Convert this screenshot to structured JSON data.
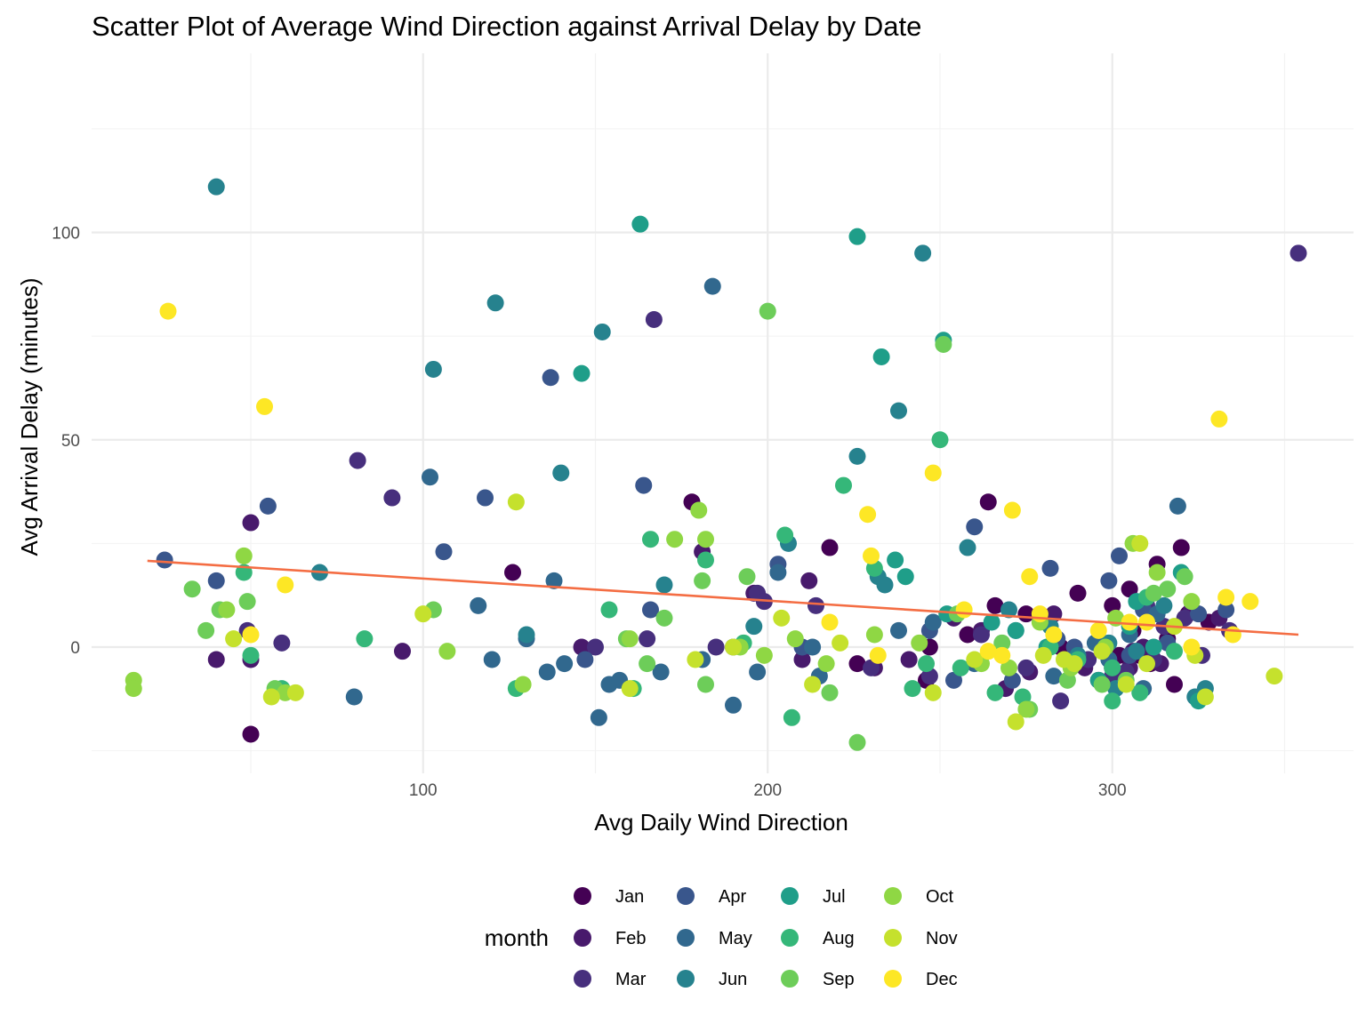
{
  "chart_data": {
    "type": "scatter",
    "title": "Scatter Plot of Average Wind Direction against Arrival Delay by Date",
    "xlabel": "Avg Daily Wind Direction",
    "ylabel": "Avg Arrival Delay (minutes)",
    "xlim": [
      0,
      362
    ],
    "ylim": [
      -25,
      145
    ],
    "x_ticks": [
      100,
      200,
      300
    ],
    "y_ticks": [
      0,
      50,
      100
    ],
    "grid": true,
    "legend": {
      "title": "month",
      "position": "bottom"
    },
    "trend_line": {
      "color": "#F46D43",
      "x": [
        20,
        354
      ],
      "y": [
        20.8,
        3.0
      ]
    },
    "series": [
      {
        "name": "Jan",
        "color": "#440154",
        "points": [
          [
            50,
            -21
          ],
          [
            126,
            18
          ],
          [
            178,
            35
          ],
          [
            218,
            24
          ],
          [
            264,
            35
          ],
          [
            290,
            13
          ],
          [
            300,
            10
          ],
          [
            305,
            14
          ],
          [
            313,
            20
          ],
          [
            320,
            24
          ],
          [
            226,
            -4
          ],
          [
            246,
            -8
          ],
          [
            247,
            0
          ],
          [
            258,
            3
          ],
          [
            266,
            10
          ],
          [
            275,
            8
          ],
          [
            285,
            0
          ],
          [
            298,
            -1
          ],
          [
            302,
            -2
          ],
          [
            308,
            -2
          ],
          [
            311,
            -4
          ],
          [
            318,
            -9
          ],
          [
            322,
            8
          ],
          [
            328,
            6
          ],
          [
            296,
            -8
          ],
          [
            306,
            4
          ],
          [
            316,
            2
          ]
        ]
      },
      {
        "name": "Feb",
        "color": "#481A6C",
        "points": [
          [
            50,
            30
          ],
          [
            50,
            -3
          ],
          [
            40,
            -3
          ],
          [
            94,
            -1
          ],
          [
            146,
            0
          ],
          [
            181,
            23
          ],
          [
            196,
            13
          ],
          [
            212,
            16
          ],
          [
            210,
            -3
          ],
          [
            231,
            -5
          ],
          [
            241,
            -3
          ],
          [
            254,
            7
          ],
          [
            262,
            4
          ],
          [
            269,
            -10
          ],
          [
            276,
            -6
          ],
          [
            283,
            8
          ],
          [
            292,
            -5
          ],
          [
            300,
            -5
          ],
          [
            306,
            -1
          ],
          [
            309,
            0
          ],
          [
            314,
            -4
          ],
          [
            323,
            9
          ],
          [
            331,
            7
          ],
          [
            305,
            -5
          ]
        ]
      },
      {
        "name": "Mar",
        "color": "#472F7D",
        "points": [
          [
            49,
            4
          ],
          [
            59,
            1
          ],
          [
            81,
            45
          ],
          [
            91,
            36
          ],
          [
            150,
            0
          ],
          [
            165,
            2
          ],
          [
            167,
            79
          ],
          [
            185,
            0
          ],
          [
            197,
            13
          ],
          [
            199,
            11
          ],
          [
            214,
            10
          ],
          [
            230,
            -5
          ],
          [
            247,
            -7
          ],
          [
            262,
            3
          ],
          [
            275,
            -5
          ],
          [
            285,
            -13
          ],
          [
            293,
            -3
          ],
          [
            300,
            -7
          ],
          [
            304,
            -6
          ],
          [
            310,
            10
          ],
          [
            315,
            5
          ],
          [
            321,
            7
          ],
          [
            334,
            4
          ],
          [
            354,
            95
          ],
          [
            302,
            -7
          ],
          [
            312,
            -3
          ],
          [
            326,
            -2
          ]
        ]
      },
      {
        "name": "Apr",
        "color": "#39568C",
        "points": [
          [
            25,
            21
          ],
          [
            40,
            16
          ],
          [
            55,
            34
          ],
          [
            106,
            23
          ],
          [
            118,
            36
          ],
          [
            137,
            65
          ],
          [
            147,
            -3
          ],
          [
            164,
            39
          ],
          [
            166,
            9
          ],
          [
            190,
            0
          ],
          [
            203,
            20
          ],
          [
            210,
            0
          ],
          [
            247,
            4
          ],
          [
            254,
            -8
          ],
          [
            260,
            29
          ],
          [
            271,
            -8
          ],
          [
            282,
            19
          ],
          [
            289,
            0
          ],
          [
            299,
            16
          ],
          [
            302,
            22
          ],
          [
            309,
            9
          ],
          [
            316,
            1
          ],
          [
            325,
            8
          ],
          [
            333,
            9
          ],
          [
            305,
            -2
          ],
          [
            284,
            2
          ]
        ]
      },
      {
        "name": "May",
        "color": "#31688E",
        "points": [
          [
            80,
            -12
          ],
          [
            102,
            41
          ],
          [
            116,
            10
          ],
          [
            120,
            -3
          ],
          [
            130,
            2
          ],
          [
            136,
            -6
          ],
          [
            138,
            16
          ],
          [
            141,
            -4
          ],
          [
            151,
            -17
          ],
          [
            154,
            -9
          ],
          [
            157,
            -8
          ],
          [
            169,
            -6
          ],
          [
            181,
            -3
          ],
          [
            184,
            87
          ],
          [
            190,
            -14
          ],
          [
            197,
            -6
          ],
          [
            203,
            18
          ],
          [
            213,
            0
          ],
          [
            215,
            -7
          ],
          [
            238,
            4
          ],
          [
            248,
            6
          ],
          [
            260,
            -4
          ],
          [
            272,
            4
          ],
          [
            283,
            -7
          ],
          [
            295,
            1
          ],
          [
            305,
            3
          ],
          [
            313,
            8
          ],
          [
            319,
            34
          ],
          [
            299,
            -3
          ],
          [
            309,
            -10
          ]
        ]
      },
      {
        "name": "Jun",
        "color": "#26828E",
        "points": [
          [
            40,
            111
          ],
          [
            70,
            18
          ],
          [
            103,
            67
          ],
          [
            121,
            83
          ],
          [
            130,
            3
          ],
          [
            140,
            42
          ],
          [
            152,
            76
          ],
          [
            170,
            15
          ],
          [
            196,
            5
          ],
          [
            206,
            25
          ],
          [
            226,
            46
          ],
          [
            232,
            17
          ],
          [
            234,
            15
          ],
          [
            238,
            57
          ],
          [
            245,
            95
          ],
          [
            258,
            24
          ],
          [
            270,
            9
          ],
          [
            282,
            5
          ],
          [
            299,
            1
          ],
          [
            307,
            -1
          ],
          [
            315,
            10
          ],
          [
            324,
            -12
          ],
          [
            327,
            -10
          ],
          [
            301,
            -10
          ],
          [
            290,
            -2
          ]
        ]
      },
      {
        "name": "Jul",
        "color": "#1F9E89",
        "points": [
          [
            146,
            66
          ],
          [
            163,
            102
          ],
          [
            226,
            99
          ],
          [
            233,
            70
          ],
          [
            237,
            21
          ],
          [
            240,
            17
          ],
          [
            251,
            74
          ],
          [
            252,
            8
          ],
          [
            265,
            6
          ],
          [
            272,
            4
          ],
          [
            281,
            0
          ],
          [
            288,
            -4
          ],
          [
            296,
            -8
          ],
          [
            307,
            11
          ],
          [
            312,
            0
          ],
          [
            320,
            18
          ],
          [
            325,
            -13
          ],
          [
            305,
            5
          ]
        ]
      },
      {
        "name": "Aug",
        "color": "#35B779",
        "points": [
          [
            48,
            18
          ],
          [
            50,
            -2
          ],
          [
            59,
            -10
          ],
          [
            83,
            2
          ],
          [
            127,
            -10
          ],
          [
            154,
            9
          ],
          [
            161,
            -10
          ],
          [
            166,
            26
          ],
          [
            182,
            21
          ],
          [
            193,
            1
          ],
          [
            205,
            27
          ],
          [
            207,
            -17
          ],
          [
            222,
            39
          ],
          [
            231,
            19
          ],
          [
            242,
            -10
          ],
          [
            246,
            -4
          ],
          [
            250,
            50
          ],
          [
            256,
            -5
          ],
          [
            266,
            -11
          ],
          [
            274,
            -12
          ],
          [
            282,
            0
          ],
          [
            290,
            -3
          ],
          [
            300,
            -13
          ],
          [
            308,
            -11
          ],
          [
            318,
            -1
          ],
          [
            300,
            -5
          ],
          [
            310,
            12
          ]
        ]
      },
      {
        "name": "Sep",
        "color": "#6DCD59",
        "points": [
          [
            33,
            14
          ],
          [
            37,
            4
          ],
          [
            41,
            9
          ],
          [
            49,
            11
          ],
          [
            57,
            -10
          ],
          [
            103,
            9
          ],
          [
            159,
            2
          ],
          [
            165,
            -4
          ],
          [
            170,
            7
          ],
          [
            181,
            16
          ],
          [
            182,
            -9
          ],
          [
            194,
            17
          ],
          [
            200,
            81
          ],
          [
            218,
            -11
          ],
          [
            226,
            -23
          ],
          [
            251,
            73
          ],
          [
            255,
            8
          ],
          [
            268,
            1
          ],
          [
            276,
            -15
          ],
          [
            287,
            -8
          ],
          [
            297,
            -9
          ],
          [
            304,
            -8
          ],
          [
            312,
            13
          ],
          [
            321,
            17
          ],
          [
            316,
            14
          ]
        ]
      },
      {
        "name": "Oct",
        "color": "#8FD744",
        "points": [
          [
            16,
            -8
          ],
          [
            16,
            -10
          ],
          [
            43,
            9
          ],
          [
            48,
            22
          ],
          [
            60,
            -11
          ],
          [
            107,
            -1
          ],
          [
            129,
            -9
          ],
          [
            160,
            2
          ],
          [
            173,
            26
          ],
          [
            180,
            33
          ],
          [
            182,
            26
          ],
          [
            192,
            0
          ],
          [
            199,
            -2
          ],
          [
            208,
            2
          ],
          [
            217,
            -4
          ],
          [
            231,
            3
          ],
          [
            244,
            1
          ],
          [
            262,
            -4
          ],
          [
            270,
            -5
          ],
          [
            279,
            6
          ],
          [
            288,
            -5
          ],
          [
            298,
            0
          ],
          [
            306,
            25
          ],
          [
            313,
            18
          ],
          [
            323,
            11
          ],
          [
            301,
            7
          ],
          [
            275,
            -15
          ]
        ]
      },
      {
        "name": "Nov",
        "color": "#C5E12D",
        "points": [
          [
            45,
            2
          ],
          [
            56,
            -12
          ],
          [
            63,
            -11
          ],
          [
            100,
            8
          ],
          [
            127,
            35
          ],
          [
            160,
            -10
          ],
          [
            179,
            -3
          ],
          [
            190,
            0
          ],
          [
            204,
            7
          ],
          [
            213,
            -9
          ],
          [
            221,
            1
          ],
          [
            248,
            -11
          ],
          [
            260,
            -3
          ],
          [
            272,
            -18
          ],
          [
            280,
            -2
          ],
          [
            289,
            -4
          ],
          [
            297,
            -1
          ],
          [
            304,
            -9
          ],
          [
            310,
            -4
          ],
          [
            318,
            5
          ],
          [
            324,
            -2
          ],
          [
            327,
            -12
          ],
          [
            347,
            -7
          ],
          [
            308,
            25
          ],
          [
            286,
            -3
          ]
        ]
      },
      {
        "name": "Dec",
        "color": "#FDE725",
        "points": [
          [
            26,
            81
          ],
          [
            54,
            58
          ],
          [
            60,
            15
          ],
          [
            50,
            3
          ],
          [
            218,
            6
          ],
          [
            229,
            32
          ],
          [
            230,
            22
          ],
          [
            232,
            -2
          ],
          [
            248,
            42
          ],
          [
            257,
            9
          ],
          [
            268,
            -2
          ],
          [
            271,
            33
          ],
          [
            276,
            17
          ],
          [
            279,
            8
          ],
          [
            283,
            3
          ],
          [
            296,
            4
          ],
          [
            305,
            6
          ],
          [
            310,
            6
          ],
          [
            323,
            0
          ],
          [
            331,
            55
          ],
          [
            333,
            12
          ],
          [
            340,
            11
          ],
          [
            335,
            3
          ],
          [
            264,
            -1
          ]
        ]
      }
    ]
  }
}
